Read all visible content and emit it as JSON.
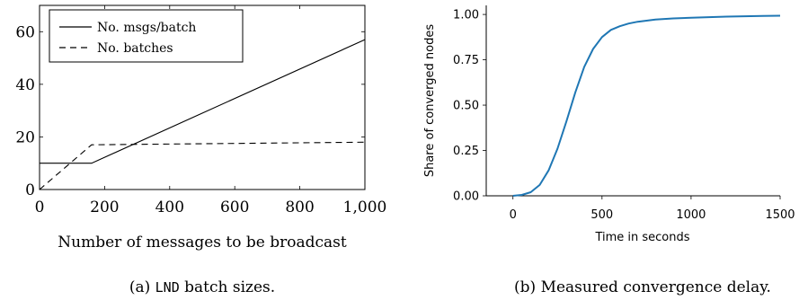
{
  "chart_data": [
    {
      "type": "line",
      "xlabel": "Number of messages to be broadcast",
      "ylabel": "",
      "caption": {
        "prefix": "(a) ",
        "code": "LND",
        "suffix": " batch sizes."
      },
      "xlim": [
        0,
        1000
      ],
      "ylim": [
        0,
        70
      ],
      "x_ticks": [
        0,
        200,
        400,
        600,
        800,
        1000
      ],
      "x_tick_labels": [
        "0",
        "200",
        "400",
        "600",
        "800",
        "1,000"
      ],
      "y_ticks": [
        0,
        20,
        40,
        60
      ],
      "y_tick_labels": [
        "0",
        "20",
        "40",
        "60"
      ],
      "grid": false,
      "legend_position": "top-left",
      "series": [
        {
          "name": "No. msgs/batch",
          "style": "solid",
          "x": [
            0,
            160,
            1000
          ],
          "y": [
            10,
            10,
            57
          ]
        },
        {
          "name": "No. batches",
          "style": "dashed",
          "x": [
            0,
            160,
            1000
          ],
          "y": [
            0,
            17,
            18
          ]
        }
      ]
    },
    {
      "type": "line",
      "xlabel": "Time in seconds",
      "ylabel": "Share of converged nodes",
      "caption": {
        "prefix": "(b) ",
        "code": "",
        "suffix": "Measured convergence delay."
      },
      "xlim": [
        -150,
        1500
      ],
      "ylim": [
        0,
        1.05
      ],
      "x_ticks": [
        0,
        500,
        1000,
        1500
      ],
      "x_tick_labels": [
        "0",
        "500",
        "1000",
        "1500"
      ],
      "y_ticks": [
        0,
        0.25,
        0.5,
        0.75,
        1.0
      ],
      "y_tick_labels": [
        "0.00",
        "0.25",
        "0.50",
        "0.75",
        "1.00"
      ],
      "grid": false,
      "series": [
        {
          "color": "#1f77b4",
          "x": [
            0,
            50,
            100,
            150,
            200,
            250,
            300,
            350,
            400,
            450,
            500,
            550,
            600,
            650,
            700,
            800,
            900,
            1000,
            1100,
            1200,
            1300,
            1400,
            1500
          ],
          "y": [
            0.0,
            0.005,
            0.02,
            0.06,
            0.14,
            0.26,
            0.41,
            0.57,
            0.71,
            0.81,
            0.875,
            0.915,
            0.935,
            0.95,
            0.96,
            0.972,
            0.978,
            0.982,
            0.985,
            0.988,
            0.99,
            0.992,
            0.993
          ]
        }
      ]
    }
  ]
}
